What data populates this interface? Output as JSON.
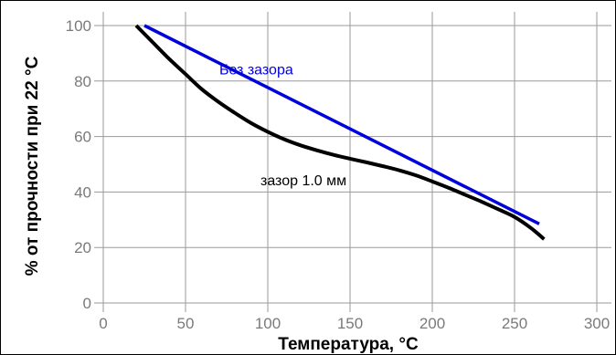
{
  "chart_data": {
    "type": "line",
    "title": "",
    "xlabel": "Температура, °C",
    "ylabel": "% от прочности при 22 °C",
    "xlim": [
      0,
      300
    ],
    "ylim": [
      0,
      100
    ],
    "grid": true,
    "x_ticks": [
      "0",
      "50",
      "100",
      "150",
      "200",
      "250",
      "300"
    ],
    "y_ticks": [
      "0",
      "20",
      "40",
      "60",
      "80",
      "100"
    ],
    "colors": {
      "grid": "#9a9a9a",
      "tick_text": "#7a7a7a",
      "series_1": "#0000dd",
      "series_2": "#000000"
    },
    "series": [
      {
        "name": "Без зазора",
        "x": [
          25,
          265
        ],
        "y": [
          100,
          28.5
        ]
      },
      {
        "name": "зазор 1.0 мм",
        "x": [
          20,
          30,
          40,
          50,
          60,
          70,
          80,
          90,
          100,
          110,
          120,
          130,
          140,
          150,
          160,
          170,
          180,
          190,
          200,
          210,
          220,
          230,
          240,
          250,
          260,
          268
        ],
        "y": [
          100,
          94,
          88,
          82.5,
          77,
          72.5,
          68.5,
          64.8,
          61.7,
          59,
          56.8,
          55,
          53.4,
          52,
          50.7,
          49.3,
          47.8,
          46,
          43.8,
          41.5,
          39,
          36.5,
          33.8,
          31,
          27,
          23
        ]
      }
    ],
    "annotations": [
      {
        "text": "Без зазора",
        "x": 75,
        "y": 84,
        "series": 0
      },
      {
        "text": "зазор 1.0 мм",
        "x": 100,
        "y": 44,
        "series": 1
      }
    ]
  }
}
